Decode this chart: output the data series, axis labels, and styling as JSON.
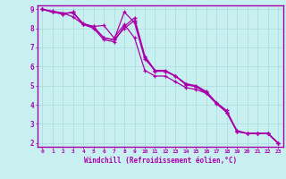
{
  "xlabel": "Windchill (Refroidissement éolien,°C)",
  "bg_color": "#c8f0f0",
  "grid_color": "#b0dede",
  "line_color": "#aa00aa",
  "spine_color": "#aa00aa",
  "xlim": [
    -0.5,
    23.5
  ],
  "ylim": [
    1.8,
    9.2
  ],
  "yticks": [
    2,
    3,
    4,
    5,
    6,
    7,
    8,
    9
  ],
  "xticks": [
    0,
    1,
    2,
    3,
    4,
    5,
    6,
    7,
    8,
    9,
    10,
    11,
    12,
    13,
    14,
    15,
    16,
    17,
    18,
    19,
    20,
    21,
    22,
    23
  ],
  "series": [
    {
      "x": [
        0,
        1,
        2,
        3,
        4,
        5,
        6,
        7,
        8,
        9,
        10,
        11,
        12,
        13,
        14,
        15,
        16,
        17,
        18,
        19,
        20,
        21,
        22,
        23
      ],
      "y": [
        9.0,
        8.85,
        8.75,
        8.85,
        8.2,
        8.1,
        8.15,
        7.5,
        8.2,
        7.5,
        5.8,
        5.5,
        5.5,
        5.2,
        4.9,
        4.8,
        4.6,
        4.1,
        3.7,
        2.6,
        2.5,
        2.5,
        2.5,
        2.0
      ]
    },
    {
      "x": [
        0,
        1,
        2,
        3,
        4,
        5,
        6,
        7,
        8,
        9,
        10,
        11,
        12,
        13,
        14,
        15,
        16,
        17,
        18,
        19,
        20,
        21,
        22,
        23
      ],
      "y": [
        9.0,
        8.9,
        8.8,
        8.6,
        8.2,
        8.0,
        7.4,
        7.3,
        8.1,
        8.55,
        6.55,
        5.8,
        5.75,
        5.5,
        5.1,
        4.95,
        4.65,
        4.1,
        3.6,
        2.65,
        2.5,
        2.5,
        2.5,
        2.0
      ]
    },
    {
      "x": [
        0,
        1,
        2,
        3,
        4,
        5,
        6,
        7,
        8,
        9,
        10,
        11,
        12,
        13,
        14,
        15,
        16,
        17,
        18,
        19,
        20,
        21,
        22,
        23
      ],
      "y": [
        9.0,
        8.85,
        8.75,
        8.85,
        8.2,
        8.05,
        7.5,
        7.4,
        8.85,
        8.3,
        6.4,
        5.8,
        5.8,
        5.5,
        5.1,
        5.0,
        4.7,
        4.1,
        3.6,
        2.6,
        2.5,
        2.5,
        2.5,
        2.0
      ]
    },
    {
      "x": [
        0,
        1,
        2,
        3,
        4,
        5,
        6,
        7,
        8,
        9,
        10,
        11,
        12,
        13,
        14,
        15,
        16,
        17,
        18,
        19,
        20,
        21,
        22,
        23
      ],
      "y": [
        9.0,
        8.85,
        8.8,
        8.8,
        8.25,
        8.1,
        7.5,
        7.4,
        8.0,
        8.4,
        6.5,
        5.75,
        5.75,
        5.5,
        5.05,
        4.95,
        4.6,
        4.05,
        3.6,
        2.6,
        2.5,
        2.5,
        2.5,
        2.0
      ]
    }
  ]
}
